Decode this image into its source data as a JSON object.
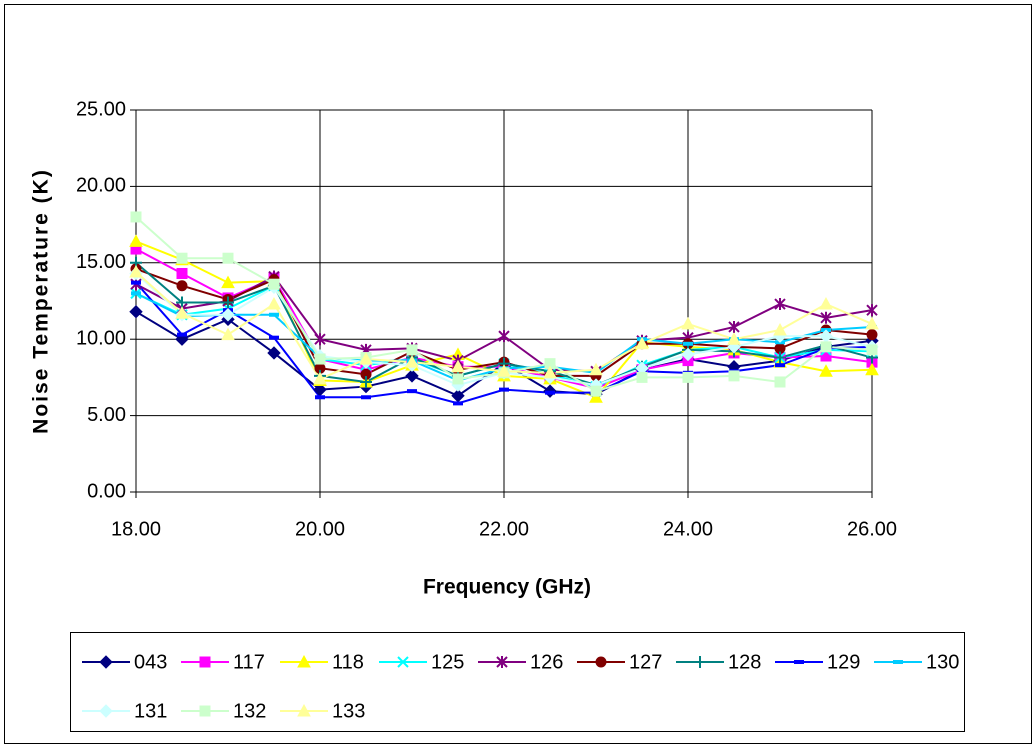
{
  "chart_data": {
    "type": "line",
    "x_label": "Frequency (GHz)",
    "y_label": "Noise Temperature (K)",
    "x": [
      18,
      18.5,
      19,
      19.5,
      20,
      20.5,
      21,
      21.5,
      22,
      22.5,
      23,
      23.5,
      24,
      24.5,
      25,
      25.5,
      26
    ],
    "xlim": [
      18,
      26
    ],
    "xticks": [
      {
        "value": 18,
        "label": "18.00"
      },
      {
        "value": 20,
        "label": "20.00"
      },
      {
        "value": 22,
        "label": "22.00"
      },
      {
        "value": 24,
        "label": "24.00"
      },
      {
        "value": 26,
        "label": "26.00"
      }
    ],
    "ylim": [
      0,
      25
    ],
    "yticks": [
      {
        "value": 0,
        "label": "0.00"
      },
      {
        "value": 5,
        "label": "5.00"
      },
      {
        "value": 10,
        "label": "10.00"
      },
      {
        "value": 15,
        "label": "15.00"
      },
      {
        "value": 20,
        "label": "20.00"
      },
      {
        "value": 25,
        "label": "25.00"
      }
    ],
    "grid": true,
    "legend": "bottom",
    "series": [
      {
        "name": "043",
        "color": "#000080",
        "marker": "diamond",
        "values": [
          11.8,
          10.0,
          11.3,
          9.1,
          6.7,
          6.9,
          7.6,
          6.3,
          8.4,
          6.6,
          6.4,
          8.0,
          8.7,
          8.2,
          8.6,
          9.5,
          9.9
        ]
      },
      {
        "name": "117",
        "color": "#FF00FF",
        "marker": "square",
        "values": [
          15.9,
          14.3,
          12.7,
          14.0,
          8.7,
          8.0,
          8.8,
          8.2,
          8.2,
          7.5,
          6.8,
          8.0,
          8.6,
          9.1,
          8.8,
          8.9,
          8.5
        ]
      },
      {
        "name": "118",
        "color": "#FFFF00",
        "marker": "triangle",
        "values": [
          16.4,
          15.2,
          13.7,
          13.8,
          7.3,
          7.2,
          8.3,
          9.0,
          7.6,
          7.4,
          6.2,
          9.8,
          9.5,
          9.3,
          8.5,
          7.9,
          8.0
        ]
      },
      {
        "name": "125",
        "color": "#00FFFF",
        "marker": "x",
        "values": [
          13.0,
          11.6,
          12.0,
          13.5,
          8.7,
          8.3,
          8.7,
          7.6,
          8.4,
          7.7,
          6.9,
          8.3,
          9.3,
          9.5,
          8.8,
          9.3,
          9.2
        ]
      },
      {
        "name": "126",
        "color": "#800080",
        "marker": "star",
        "values": [
          13.6,
          12.0,
          12.5,
          14.1,
          10.0,
          9.3,
          9.4,
          8.6,
          10.2,
          8.0,
          7.9,
          9.9,
          10.1,
          10.8,
          12.3,
          11.4,
          11.9
        ]
      },
      {
        "name": "127",
        "color": "#800000",
        "marker": "circle",
        "values": [
          14.6,
          13.5,
          12.6,
          13.9,
          8.1,
          7.7,
          9.2,
          8.0,
          8.5,
          7.6,
          7.6,
          9.7,
          9.7,
          9.5,
          9.4,
          10.6,
          10.3
        ]
      },
      {
        "name": "128",
        "color": "#008080",
        "marker": "plus",
        "values": [
          15.0,
          12.4,
          12.4,
          13.5,
          7.6,
          7.2,
          8.8,
          7.6,
          8.4,
          7.9,
          7.0,
          8.2,
          9.3,
          9.2,
          8.8,
          9.6,
          8.8
        ]
      },
      {
        "name": "129",
        "color": "#0000FF",
        "marker": "dash",
        "values": [
          13.7,
          10.3,
          11.9,
          10.1,
          6.2,
          6.2,
          6.6,
          5.8,
          6.7,
          6.5,
          6.5,
          7.9,
          7.8,
          7.9,
          8.3,
          9.4,
          9.5
        ]
      },
      {
        "name": "130",
        "color": "#00CCFF",
        "marker": "dash",
        "values": [
          13.0,
          11.5,
          11.6,
          11.6,
          8.8,
          8.6,
          8.6,
          7.3,
          8.1,
          8.2,
          7.8,
          10.0,
          9.7,
          10.0,
          9.8,
          10.6,
          10.8
        ]
      },
      {
        "name": "131",
        "color": "#CCFFFF",
        "marker": "diamond",
        "values": [
          14.3,
          11.6,
          11.6,
          13.4,
          8.9,
          8.5,
          8.3,
          7.0,
          7.8,
          7.5,
          7.0,
          8.1,
          9.0,
          9.5,
          10.2,
          10.2,
          9.5
        ]
      },
      {
        "name": "132",
        "color": "#CCFFCC",
        "marker": "square",
        "values": [
          18.0,
          15.3,
          15.3,
          13.6,
          8.7,
          8.8,
          9.3,
          7.4,
          7.8,
          8.4,
          6.6,
          7.5,
          7.5,
          7.6,
          7.2,
          9.5,
          9.3
        ]
      },
      {
        "name": "133",
        "color": "#FFFF99",
        "marker": "triangle",
        "values": [
          14.4,
          11.7,
          10.3,
          12.3,
          7.4,
          8.7,
          8.5,
          8.2,
          7.9,
          7.8,
          8.0,
          9.7,
          11.0,
          10.0,
          10.6,
          12.3,
          11.0
        ]
      }
    ]
  }
}
